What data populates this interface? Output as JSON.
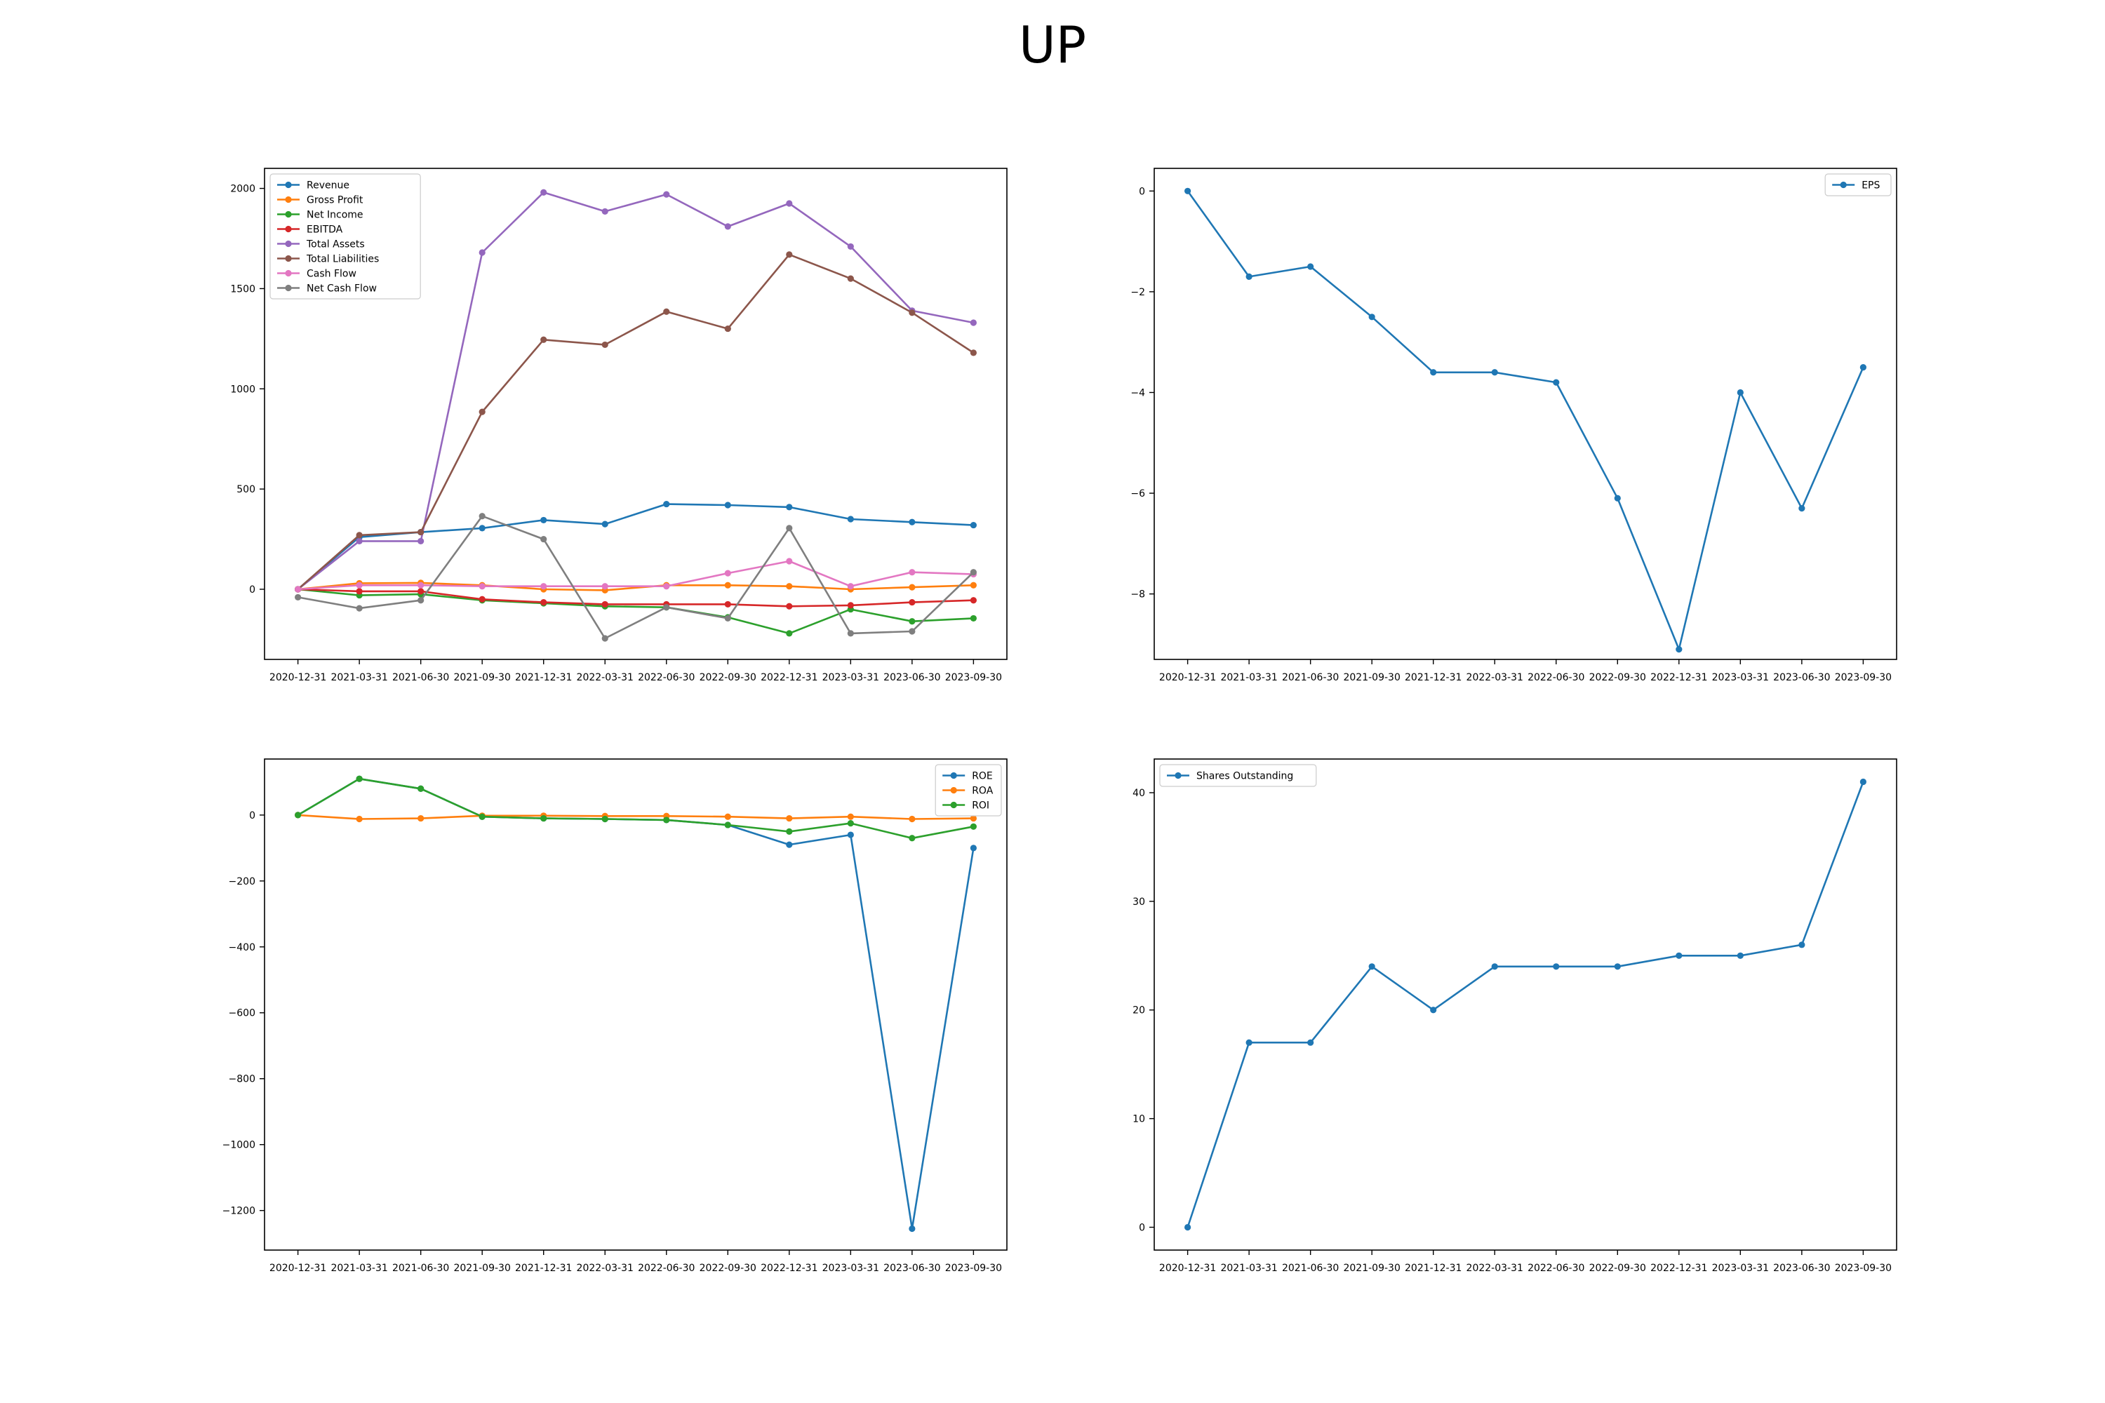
{
  "title": "UP",
  "x_labels": [
    "2020-12-31",
    "2021-03-31",
    "2021-06-30",
    "2021-09-30",
    "2021-12-31",
    "2022-03-31",
    "2022-06-30",
    "2022-09-30",
    "2022-12-31",
    "2023-03-31",
    "2023-06-30",
    "2023-09-30"
  ],
  "chart_data": [
    {
      "type": "line",
      "legend_loc": "upper-left",
      "ylim": [
        -350,
        2100
      ],
      "yticks": [
        0,
        500,
        1000,
        1500,
        2000
      ],
      "grid": false,
      "series": [
        {
          "name": "Revenue",
          "color": "#1f77b4",
          "values": [
            0,
            260,
            285,
            305,
            345,
            325,
            425,
            420,
            410,
            350,
            335,
            320
          ]
        },
        {
          "name": "Gross Profit",
          "color": "#ff7f0e",
          "values": [
            0,
            30,
            32,
            20,
            0,
            -5,
            20,
            20,
            15,
            0,
            10,
            20
          ]
        },
        {
          "name": "Net Income",
          "color": "#2ca02c",
          "values": [
            0,
            -30,
            -25,
            -55,
            -70,
            -85,
            -90,
            -140,
            -220,
            -100,
            -160,
            -145
          ]
        },
        {
          "name": "EBITDA",
          "color": "#d62728",
          "values": [
            0,
            -10,
            -10,
            -50,
            -65,
            -75,
            -75,
            -75,
            -85,
            -80,
            -65,
            -55
          ]
        },
        {
          "name": "Total Assets",
          "color": "#9467bd",
          "values": [
            0,
            240,
            240,
            1680,
            1980,
            1885,
            1970,
            1810,
            1925,
            1710,
            1390,
            1330
          ]
        },
        {
          "name": "Total Liabilities",
          "color": "#8c564b",
          "values": [
            0,
            270,
            285,
            885,
            1245,
            1220,
            1385,
            1300,
            1670,
            1550,
            1380,
            1180
          ]
        },
        {
          "name": "Cash Flow",
          "color": "#e377c2",
          "values": [
            0,
            20,
            20,
            15,
            15,
            15,
            15,
            80,
            140,
            15,
            85,
            75
          ]
        },
        {
          "name": "Net Cash Flow",
          "color": "#7f7f7f",
          "values": [
            -40,
            -95,
            -55,
            365,
            250,
            -245,
            -90,
            -145,
            305,
            -220,
            -210,
            85
          ]
        }
      ]
    },
    {
      "type": "line",
      "legend_loc": "upper-right",
      "ylim": [
        -9.3,
        0.45
      ],
      "yticks": [
        0,
        -2,
        -4,
        -6,
        -8
      ],
      "tick_labels": [
        "0",
        "−2",
        "−4",
        "−6",
        "−8"
      ],
      "grid": false,
      "series": [
        {
          "name": "EPS",
          "color": "#1f77b4",
          "values": [
            0,
            -1.7,
            -1.5,
            -2.5,
            -3.6,
            -3.6,
            -3.8,
            -6.1,
            -9.1,
            -4.0,
            -6.3,
            -3.5
          ]
        }
      ]
    },
    {
      "type": "line",
      "legend_loc": "upper-right",
      "ylim": [
        -1320,
        170
      ],
      "yticks": [
        0,
        -200,
        -400,
        -600,
        -800,
        -1000,
        -1200
      ],
      "tick_labels": [
        "0",
        "−200",
        "−400",
        "−600",
        "−800",
        "−1000",
        "−1200"
      ],
      "grid": false,
      "series": [
        {
          "name": "ROE",
          "color": "#1f77b4",
          "values": [
            0,
            110,
            80,
            -5,
            -10,
            -12,
            -15,
            -30,
            -90,
            -60,
            -1255,
            -100
          ]
        },
        {
          "name": "ROA",
          "color": "#ff7f0e",
          "values": [
            0,
            -12,
            -10,
            -2,
            -2,
            -3,
            -3,
            -5,
            -10,
            -5,
            -12,
            -10
          ]
        },
        {
          "name": "ROI",
          "color": "#2ca02c",
          "values": [
            0,
            110,
            80,
            -5,
            -10,
            -12,
            -15,
            -30,
            -50,
            -25,
            -70,
            -35
          ]
        }
      ]
    },
    {
      "type": "line",
      "legend_loc": "upper-left",
      "ylim": [
        -2.1,
        43.1
      ],
      "yticks": [
        0,
        10,
        20,
        30,
        40
      ],
      "grid": false,
      "series": [
        {
          "name": "Shares Outstanding",
          "color": "#1f77b4",
          "values": [
            0,
            17,
            17,
            24,
            20,
            24,
            24,
            24,
            25,
            25,
            26,
            41
          ]
        }
      ]
    }
  ]
}
